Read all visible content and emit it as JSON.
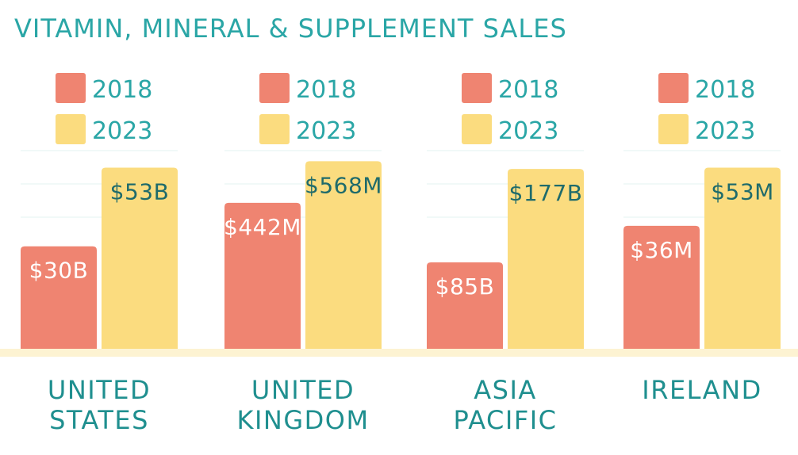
{
  "title": "VITAMIN, MINERAL & SUPPLEMENT SALES",
  "colors": {
    "title": "#2aa6a6",
    "series_2018": "#ef8471",
    "series_2023": "#fbdc7f",
    "value_on_2018": "#ffffff",
    "value_on_2023": "#1f6b6b",
    "category_label": "#1f8f8f",
    "baseline": "#fdf3d2",
    "gridline": "#e3f3f1"
  },
  "chart_data": [
    {
      "type": "bar",
      "categories": [
        "UNITED STATES"
      ],
      "category_lines": [
        "UNITED",
        "STATES"
      ],
      "series": [
        {
          "name": "2018",
          "values": [
            30
          ],
          "labels": [
            "$30B"
          ]
        },
        {
          "name": "2023",
          "values": [
            53
          ],
          "labels": [
            "$53B"
          ]
        }
      ],
      "unit": "B",
      "ylim": [
        0,
        58
      ],
      "legend": "top"
    },
    {
      "type": "bar",
      "categories": [
        "UNITED KINGDOM"
      ],
      "category_lines": [
        "UNITED",
        "KINGDOM"
      ],
      "series": [
        {
          "name": "2018",
          "values": [
            442
          ],
          "labels": [
            "$442M"
          ]
        },
        {
          "name": "2023",
          "values": [
            568
          ],
          "labels": [
            "$568M"
          ]
        }
      ],
      "unit": "M",
      "ylim": [
        0,
        600
      ],
      "legend": "top"
    },
    {
      "type": "bar",
      "categories": [
        "ASIA PACIFIC"
      ],
      "category_lines": [
        "ASIA",
        "PACIFIC"
      ],
      "series": [
        {
          "name": "2018",
          "values": [
            85
          ],
          "labels": [
            "$85B"
          ]
        },
        {
          "name": "2023",
          "values": [
            177
          ],
          "labels": [
            "$177B"
          ]
        }
      ],
      "unit": "B",
      "ylim": [
        0,
        195
      ],
      "legend": "top"
    },
    {
      "type": "bar",
      "categories": [
        "IRELAND"
      ],
      "category_lines": [
        "IRELAND"
      ],
      "series": [
        {
          "name": "2018",
          "values": [
            36
          ],
          "labels": [
            "$36M"
          ]
        },
        {
          "name": "2023",
          "values": [
            53
          ],
          "labels": [
            "$53M"
          ]
        }
      ],
      "unit": "M",
      "ylim": [
        0,
        58
      ],
      "legend": "top"
    }
  ]
}
